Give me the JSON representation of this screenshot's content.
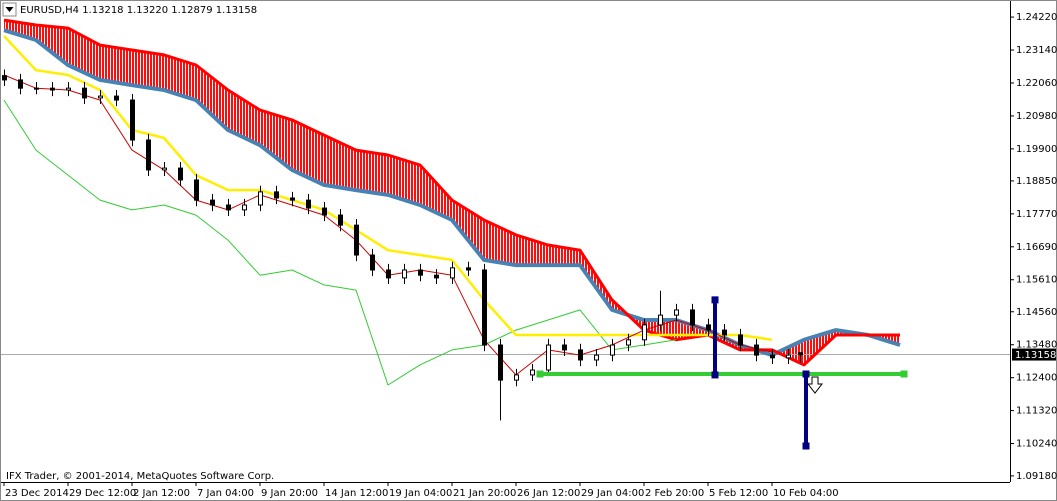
{
  "chart_data": {
    "type": "candlestick",
    "title": "EURUSD,H4  1.13218 1.13220 1.12879 1.13158",
    "footer": "IFX Trader, © 2001-2014, MetaQuotes Software Corp.",
    "xlim": [
      -1,
      251.5
    ],
    "xticks": [
      {
        "value": 0,
        "label": "23 Dec 2014"
      },
      {
        "value": 16,
        "label": "29 Dec 12:00"
      },
      {
        "value": 32,
        "label": "2 Jan 12:00"
      },
      {
        "value": 48,
        "label": "7 Jan 04:00"
      },
      {
        "value": 64,
        "label": "9 Jan 20:00"
      },
      {
        "value": 80,
        "label": "14 Jan 12:00"
      },
      {
        "value": 96,
        "label": "19 Jan 04:00"
      },
      {
        "value": 112,
        "label": "21 Jan 20:00"
      },
      {
        "value": 128,
        "label": "26 Jan 12:00"
      },
      {
        "value": 144,
        "label": "29 Jan 04:00"
      },
      {
        "value": 160,
        "label": "2 Feb 20:00"
      },
      {
        "value": 176,
        "label": "5 Feb 12:00"
      },
      {
        "value": 192,
        "label": "10 Feb 04:00"
      }
    ],
    "ylim": [
      1.0898,
      1.2478
    ],
    "yticks": [
      {
        "value": 1.2422,
        "label": "1.24220"
      },
      {
        "value": 1.2314,
        "label": "1.23140"
      },
      {
        "value": 1.2206,
        "label": "1.22060"
      },
      {
        "value": 1.2098,
        "label": "1.20980"
      },
      {
        "value": 1.199,
        "label": "1.19900"
      },
      {
        "value": 1.1885,
        "label": "1.18850"
      },
      {
        "value": 1.1777,
        "label": "1.17770"
      },
      {
        "value": 1.1669,
        "label": "1.16690"
      },
      {
        "value": 1.1561,
        "label": "1.15610"
      },
      {
        "value": 1.1456,
        "label": "1.14560"
      },
      {
        "value": 1.1348,
        "label": "1.13480"
      },
      {
        "value": 1.124,
        "label": "1.12400"
      },
      {
        "value": 1.1132,
        "label": "1.11320"
      },
      {
        "value": 1.1024,
        "label": "1.10240"
      },
      {
        "value": 1.0918,
        "label": "1.09180"
      }
    ],
    "grid": false,
    "candles": {
      "x": [
        0,
        4,
        8,
        12,
        16,
        20,
        24,
        28,
        32,
        36,
        40,
        44,
        48,
        52,
        56,
        60,
        64,
        68,
        72,
        76,
        80,
        84,
        88,
        92,
        96,
        100,
        104,
        108,
        112,
        116,
        120,
        124,
        128,
        132,
        136,
        140,
        144,
        148,
        152,
        156,
        160,
        164,
        168,
        172,
        176,
        180,
        184,
        188,
        192,
        196,
        199
      ],
      "open": [
        1.223,
        1.2216,
        1.2189,
        1.2189,
        1.2183,
        1.2189,
        1.2157,
        1.2163,
        1.215,
        1.2019,
        1.1921,
        1.1927,
        1.1888,
        1.1822,
        1.1806,
        1.179,
        1.1806,
        1.1849,
        1.1829,
        1.1822,
        1.1796,
        1.1773,
        1.174,
        1.1642,
        1.1593,
        1.1567,
        1.1593,
        1.1576,
        1.1567,
        1.16,
        1.1593,
        1.1347,
        1.1232,
        1.1249,
        1.1265,
        1.1347,
        1.1331,
        1.1298,
        1.1314,
        1.1347,
        1.1364,
        1.1413,
        1.1445,
        1.1462,
        1.1413,
        1.1396,
        1.138,
        1.1347,
        1.1314,
        1.1305,
        1.13218
      ],
      "high": [
        1.225,
        1.2236,
        1.2209,
        1.2209,
        1.2209,
        1.2209,
        1.2183,
        1.2183,
        1.217,
        1.2039,
        1.1947,
        1.1947,
        1.1908,
        1.1842,
        1.1826,
        1.1826,
        1.1869,
        1.1869,
        1.1849,
        1.1842,
        1.1816,
        1.1793,
        1.176,
        1.1662,
        1.1613,
        1.1613,
        1.1613,
        1.1596,
        1.162,
        1.162,
        1.1613,
        1.1367,
        1.1269,
        1.1285,
        1.1367,
        1.1367,
        1.1351,
        1.1334,
        1.1367,
        1.1384,
        1.1433,
        1.1525,
        1.1482,
        1.1482,
        1.1433,
        1.1416,
        1.14,
        1.1367,
        1.1334,
        1.1334,
        1.1322
      ],
      "low": [
        1.2196,
        1.2169,
        1.2169,
        1.2163,
        1.2163,
        1.2137,
        1.2137,
        1.213,
        1.1999,
        1.1901,
        1.1901,
        1.1868,
        1.1802,
        1.1786,
        1.177,
        1.177,
        1.1786,
        1.1809,
        1.1802,
        1.1776,
        1.1753,
        1.172,
        1.1622,
        1.1573,
        1.1547,
        1.1547,
        1.1556,
        1.1547,
        1.1547,
        1.1573,
        1.1327,
        1.11,
        1.1212,
        1.1229,
        1.1245,
        1.1311,
        1.1278,
        1.1278,
        1.1294,
        1.1327,
        1.1344,
        1.1393,
        1.1425,
        1.1393,
        1.1376,
        1.136,
        1.1327,
        1.1294,
        1.1285,
        1.1285,
        1.12879
      ],
      "close": [
        1.2216,
        1.2189,
        1.2189,
        1.2183,
        1.2189,
        1.2157,
        1.2163,
        1.215,
        1.2019,
        1.1921,
        1.1927,
        1.1888,
        1.1822,
        1.1806,
        1.179,
        1.1806,
        1.1849,
        1.1829,
        1.1822,
        1.1796,
        1.1773,
        1.174,
        1.1642,
        1.1593,
        1.1567,
        1.1593,
        1.1576,
        1.1567,
        1.16,
        1.1593,
        1.1347,
        1.1232,
        1.1249,
        1.1265,
        1.1347,
        1.1331,
        1.1298,
        1.1314,
        1.1347,
        1.1364,
        1.1413,
        1.1445,
        1.1462,
        1.1413,
        1.1396,
        1.138,
        1.1347,
        1.1314,
        1.1305,
        1.1314,
        1.13158
      ]
    },
    "x": [
      0,
      8,
      16,
      24,
      32,
      40,
      48,
      56,
      64,
      72,
      80,
      88,
      96,
      104,
      112,
      120,
      128,
      136,
      144,
      152,
      160,
      168,
      176,
      184,
      192,
      200,
      208,
      216,
      224
    ],
    "series": [
      {
        "color": "#cc0000",
        "width": 1,
        "values": [
          1.2232,
          1.2189,
          1.2183,
          1.215,
          1.1986,
          1.1921,
          1.1822,
          1.179,
          1.1839,
          1.1806,
          1.1773,
          1.1691,
          1.1576,
          1.1593,
          1.1576,
          1.1364,
          1.1249,
          1.1331,
          1.1314,
          1.1347,
          1.1396,
          1.1429,
          1.1396,
          1.1347,
          1.1324,
          null,
          null,
          null,
          null
        ]
      },
      {
        "color": "#ffee00",
        "width": 2.5,
        "values": [
          1.236,
          1.2248,
          1.2232,
          1.2183,
          1.2052,
          1.2026,
          1.1904,
          1.1855,
          1.1855,
          1.1822,
          1.179,
          1.1724,
          1.1658,
          1.1642,
          1.1626,
          1.1495,
          1.138,
          1.138,
          1.138,
          1.138,
          1.138,
          1.138,
          1.138,
          1.138,
          1.1364,
          null,
          null,
          null,
          null
        ]
      },
      {
        "color": "#33cc33",
        "width": 1,
        "values": [
          1.215,
          1.1986,
          1.1904,
          1.1822,
          1.179,
          1.1806,
          1.1773,
          1.1691,
          1.1576,
          1.1593,
          1.1544,
          1.1527,
          1.1216,
          1.1282,
          1.1331,
          1.1347,
          1.1396,
          1.1429,
          1.1462,
          1.1331,
          1.1347,
          1.1364,
          null,
          null,
          null,
          null,
          null,
          null,
          null
        ]
      },
      {
        "color": "#ff0000",
        "width": 3,
        "values": [
          1.2412,
          1.2396,
          1.2386,
          1.233,
          1.2314,
          1.2298,
          1.2265,
          1.2183,
          1.2117,
          1.2085,
          1.2035,
          1.1986,
          1.197,
          1.1937,
          1.1822,
          1.1757,
          1.1708,
          1.1675,
          1.1658,
          1.1495,
          1.1396,
          1.1364,
          1.138,
          1.1331,
          1.1331,
          1.1282,
          1.138,
          1.138,
          1.138
        ]
      },
      {
        "color": "#4682b4",
        "width": 4,
        "values": [
          1.2379,
          1.2347,
          1.2265,
          1.2216,
          1.2199,
          1.2183,
          1.215,
          1.2052,
          1.2002,
          1.1921,
          1.1872,
          1.1855,
          1.1839,
          1.1806,
          1.1757,
          1.1626,
          1.1609,
          1.1609,
          1.1609,
          1.1462,
          1.1429,
          1.1429,
          1.1396,
          1.1347,
          1.1314,
          1.1364,
          1.1396,
          1.138,
          1.1347
        ]
      }
    ],
    "cloud_color": "#ff0000",
    "lines": [
      {
        "color": "#33cc33",
        "x": [
          134,
          225
        ],
        "values": [
          1.1252,
          1.1252
        ]
      },
      {
        "color": "#000080",
        "x": [
          177.75,
          177.75
        ],
        "values": [
          1.1495,
          1.1249
        ]
      },
      {
        "color": "#000080",
        "x": [
          200.5,
          200.5
        ],
        "values": [
          1.1252,
          1.1016
        ]
      }
    ]
  }
}
